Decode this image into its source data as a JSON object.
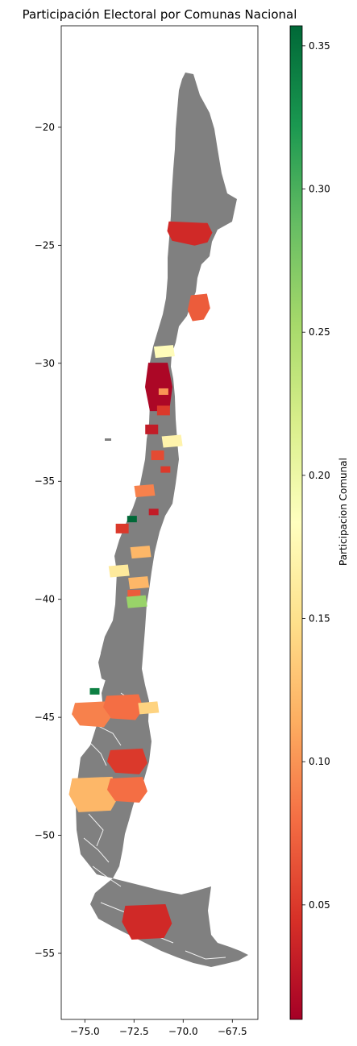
{
  "chart_data": {
    "type": "choropleth",
    "title": "Participación Electoral por Comunas Nacional",
    "x_ticks": [
      "−75.0",
      "−72.5",
      "−70.0",
      "−67.5"
    ],
    "x_tick_values": [
      -75.0,
      -72.5,
      -70.0,
      -67.5
    ],
    "y_ticks": [
      "−20",
      "−25",
      "−30",
      "−35",
      "−40",
      "−45",
      "−50",
      "−55"
    ],
    "y_tick_values": [
      -20,
      -25,
      -30,
      -35,
      -40,
      -45,
      -50,
      -55
    ],
    "xlim": [
      -76.2,
      -66.2
    ],
    "ylim": [
      -57.8,
      -15.7
    ],
    "colorbar": {
      "label": "Participacion Comunal",
      "colormap": "RdYlGn",
      "range": [
        0.01,
        0.357
      ],
      "ticks": [
        "0.05",
        "0.10",
        "0.15",
        "0.20",
        "0.25",
        "0.30",
        "0.35"
      ],
      "tick_values": [
        0.05,
        0.1,
        0.15,
        0.2,
        0.25,
        0.3,
        0.35
      ]
    },
    "no_data_color": "#808080",
    "regions": [
      {
        "lon": -69.5,
        "lat": -24.4,
        "value": 0.04
      },
      {
        "lon": -69.2,
        "lat": -27.6,
        "value": 0.07
      },
      {
        "lon": -71.0,
        "lat": -29.5,
        "value": 0.18
      },
      {
        "lon": -71.2,
        "lat": -31.0,
        "value": 0.015
      },
      {
        "lon": -71.0,
        "lat": -31.2,
        "value": 0.1
      },
      {
        "lon": -71.0,
        "lat": -32.0,
        "value": 0.05
      },
      {
        "lon": -71.6,
        "lat": -32.8,
        "value": 0.03
      },
      {
        "lon": -70.6,
        "lat": -33.3,
        "value": 0.17
      },
      {
        "lon": -71.3,
        "lat": -33.9,
        "value": 0.06
      },
      {
        "lon": -70.9,
        "lat": -34.5,
        "value": 0.05
      },
      {
        "lon": -72.0,
        "lat": -35.4,
        "value": 0.09
      },
      {
        "lon": -71.5,
        "lat": -36.3,
        "value": 0.03
      },
      {
        "lon": -72.6,
        "lat": -36.6,
        "value": 0.357
      },
      {
        "lon": -73.1,
        "lat": -37.0,
        "value": 0.05
      },
      {
        "lon": -72.2,
        "lat": -38.0,
        "value": 0.12
      },
      {
        "lon": -73.3,
        "lat": -38.8,
        "value": 0.16
      },
      {
        "lon": -72.3,
        "lat": -39.3,
        "value": 0.12
      },
      {
        "lon": -72.5,
        "lat": -39.8,
        "value": 0.07
      },
      {
        "lon": -72.4,
        "lat": -40.1,
        "value": 0.26
      },
      {
        "lon": -74.5,
        "lat": -43.9,
        "value": 0.34
      },
      {
        "lon": -74.6,
        "lat": -44.8,
        "value": 0.09
      },
      {
        "lon": -73.0,
        "lat": -44.5,
        "value": 0.08
      },
      {
        "lon": -71.8,
        "lat": -44.6,
        "value": 0.14
      },
      {
        "lon": -72.8,
        "lat": -46.8,
        "value": 0.05
      },
      {
        "lon": -74.5,
        "lat": -48.2,
        "value": 0.12
      },
      {
        "lon": -72.8,
        "lat": -48.0,
        "value": 0.08
      },
      {
        "lon": -71.8,
        "lat": -53.6,
        "value": 0.04
      }
    ]
  }
}
